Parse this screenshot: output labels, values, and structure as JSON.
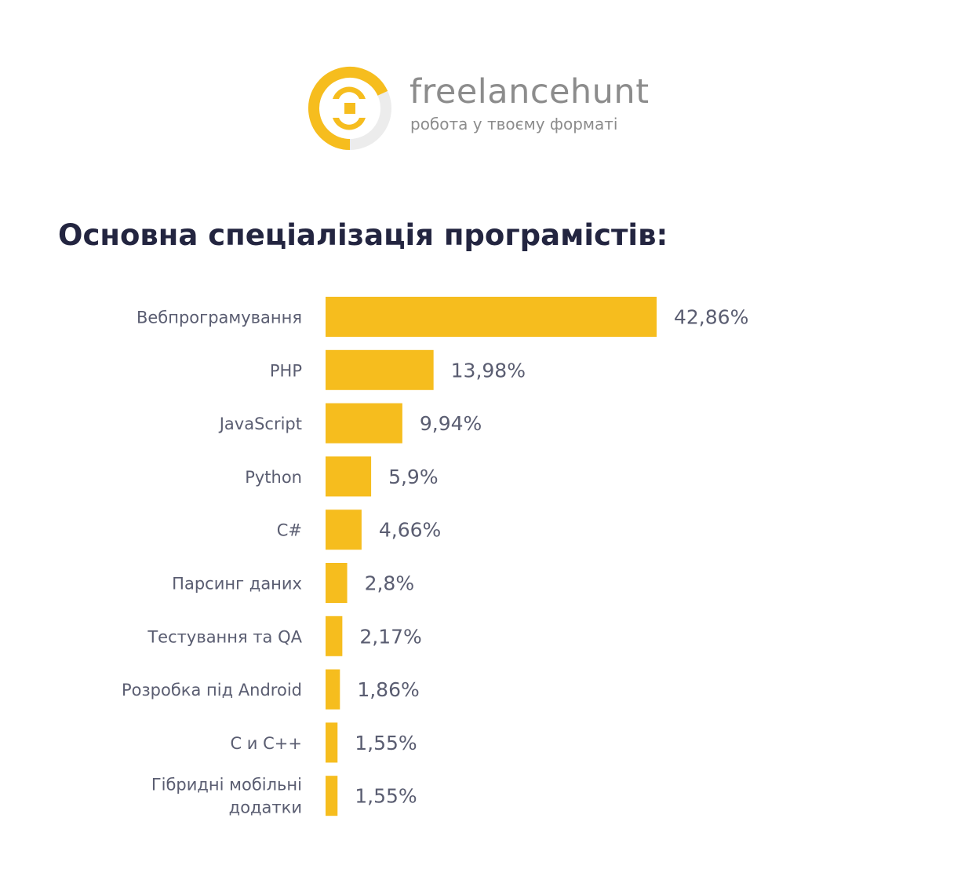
{
  "brand": {
    "name": "freelancehunt",
    "tagline": "робота у твоєму форматі",
    "accent_color": "#f6bd1e",
    "ring_gray": "#ececec"
  },
  "title": "Основна спеціалізація програмістів:",
  "chart_data": {
    "type": "bar",
    "orientation": "horizontal",
    "title": "Основна спеціалізація програмістів:",
    "xlabel": "",
    "ylabel": "",
    "grid": false,
    "bar_color": "#f6bd1e",
    "categories": [
      "Вебпрограмування",
      "PHP",
      "JavaScript",
      "Python",
      "C#",
      "Парсинг даних",
      "Тестування та QA",
      "Розробка під Android",
      "C и C++",
      "Гібридні мобільні додатки"
    ],
    "values": [
      42.86,
      13.98,
      9.94,
      5.9,
      4.66,
      2.8,
      2.17,
      1.86,
      1.55,
      1.55
    ],
    "value_labels": [
      "42,86%",
      "13,98%",
      "9,94%",
      "5,9%",
      "4,66%",
      "2,8%",
      "2,17%",
      "1,86%",
      "1,55%",
      "1,55%"
    ]
  }
}
